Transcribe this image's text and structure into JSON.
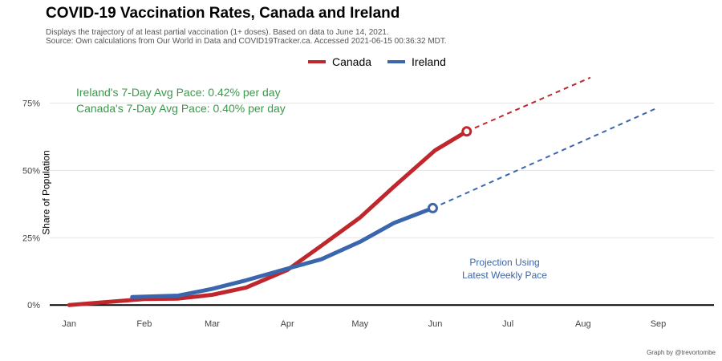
{
  "title": "COVID-19 Vaccination Rates, Canada and Ireland",
  "subtitle_lines": [
    "Displays the trajectory of at least partial vaccination (1+ doses). Based on data to June 14, 2021.",
    "Source: Own calculations from Our World in Data and COVID19Tracker.ca. Accessed 2021-06-15 00:36:32 MDT."
  ],
  "footer": "Graph by @trevortombe",
  "legend": [
    {
      "name": "Canada",
      "color": "#c0272d"
    },
    {
      "name": "Ireland",
      "color": "#3a66ad"
    }
  ],
  "colors": {
    "annotation": "#3a9a4a",
    "projection_label": "#3a66ad"
  },
  "chart_data": {
    "type": "line",
    "ylabel": "Share of Population",
    "y_ticks": [
      {
        "v": 0,
        "label": "0%"
      },
      {
        "v": 25,
        "label": "25%"
      },
      {
        "v": 50,
        "label": "50%"
      },
      {
        "v": 75,
        "label": "75%"
      }
    ],
    "x_ticks": [
      {
        "date": "2021-01-01",
        "label": "Jan"
      },
      {
        "date": "2021-02-01",
        "label": "Feb"
      },
      {
        "date": "2021-03-01",
        "label": "Mar"
      },
      {
        "date": "2021-04-01",
        "label": "Apr"
      },
      {
        "date": "2021-05-01",
        "label": "May"
      },
      {
        "date": "2021-06-01",
        "label": "Jun"
      },
      {
        "date": "2021-07-01",
        "label": "Jul"
      },
      {
        "date": "2021-08-01",
        "label": "Aug"
      },
      {
        "date": "2021-09-01",
        "label": "Sep"
      }
    ],
    "xlim": [
      "2020-12-24",
      "2021-09-24"
    ],
    "ylim": [
      -5,
      85
    ],
    "grid": true,
    "legend_position": "top",
    "annotations": {
      "ireland_pace": "Ireland's 7-Day Avg Pace: 0.42% per day",
      "canada_pace": "Canada's 7-Day Avg Pace: 0.40% per day",
      "projection_line1": "Projection Using",
      "projection_line2": "Latest Weekly Pace"
    },
    "series": [
      {
        "name": "Canada",
        "color": "#c0272d",
        "points": [
          [
            "2021-01-01",
            0.0
          ],
          [
            "2021-01-15",
            1.0
          ],
          [
            "2021-02-01",
            2.2
          ],
          [
            "2021-02-15",
            2.4
          ],
          [
            "2021-03-01",
            3.8
          ],
          [
            "2021-03-15",
            6.5
          ],
          [
            "2021-04-01",
            13.0
          ],
          [
            "2021-04-15",
            22.0
          ],
          [
            "2021-05-01",
            32.5
          ],
          [
            "2021-05-15",
            44.0
          ],
          [
            "2021-06-01",
            57.5
          ],
          [
            "2021-06-14",
            64.5
          ]
        ],
        "projection": [
          [
            "2021-06-14",
            64.5
          ],
          [
            "2021-08-04",
            84.5
          ]
        ]
      },
      {
        "name": "Ireland",
        "color": "#3a66ad",
        "points": [
          [
            "2021-01-27",
            3.0
          ],
          [
            "2021-02-15",
            3.5
          ],
          [
            "2021-03-01",
            6.0
          ],
          [
            "2021-03-15",
            9.2
          ],
          [
            "2021-04-01",
            13.5
          ],
          [
            "2021-04-15",
            17.0
          ],
          [
            "2021-05-01",
            23.5
          ],
          [
            "2021-05-15",
            30.5
          ],
          [
            "2021-05-31",
            36.0
          ]
        ],
        "projection": [
          [
            "2021-05-31",
            36.0
          ],
          [
            "2021-08-31",
            73.0
          ]
        ]
      }
    ]
  }
}
